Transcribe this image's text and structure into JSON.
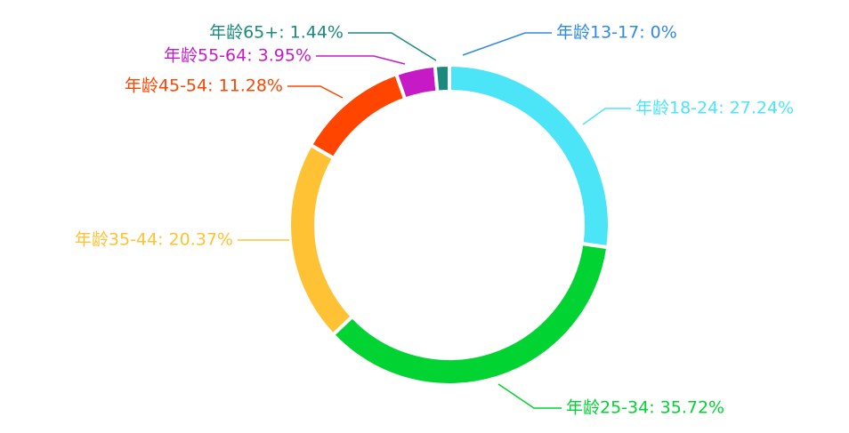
{
  "chart_data": {
    "type": "pie",
    "value_labels": [
      "年龄13-17: 0%",
      "年龄18-24: 27.24%",
      "年龄25-34: 35.72%",
      "年龄35-44: 20.37%",
      "年龄45-54: 11.28%",
      "年龄55-64: 3.95%",
      "年龄65+: 1.44%"
    ],
    "values": [
      0,
      27.24,
      35.72,
      20.37,
      11.28,
      3.95,
      1.44
    ],
    "colors": [
      "#2f89e6",
      "#4ce5f8",
      "#00d332",
      "#ffc234",
      "#ff4500",
      "#c71ac7",
      "#1b8a7e"
    ]
  }
}
